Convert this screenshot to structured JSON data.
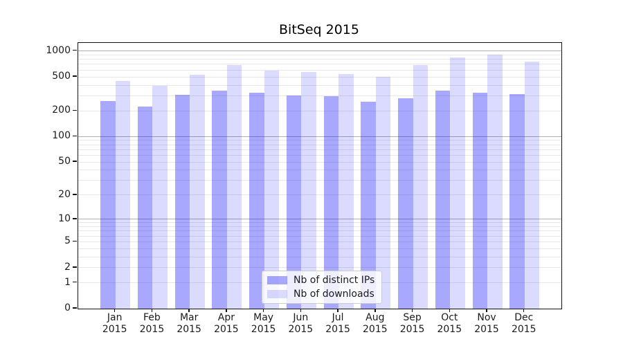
{
  "title": "BitSeq 2015",
  "chart_data": {
    "type": "bar",
    "title": "BitSeq 2015",
    "yscale": "log1p",
    "ylim": [
      0,
      1000
    ],
    "yticks": [
      0,
      1,
      2,
      5,
      10,
      20,
      50,
      100,
      200,
      500,
      1000
    ],
    "grid": true,
    "legend_position": "lower center",
    "year": "2015",
    "months": [
      "Jan",
      "Feb",
      "Mar",
      "Apr",
      "May",
      "Jun",
      "Jul",
      "Aug",
      "Sep",
      "Oct",
      "Nov",
      "Dec"
    ],
    "series": [
      {
        "name": "Nb of distinct IPs",
        "color": "#0000ff",
        "alpha": 0.34,
        "values": [
          260,
          224,
          306,
          347,
          324,
          304,
          299,
          256,
          280,
          348,
          327,
          314
        ]
      },
      {
        "name": "Nb of downloads",
        "color": "#0000ff",
        "alpha": 0.14,
        "values": [
          445,
          391,
          530,
          688,
          594,
          566,
          542,
          500,
          692,
          836,
          905,
          760
        ]
      }
    ],
    "colors": {
      "major_gridline": "#b0b0b0",
      "minor_gridline": "#e7e7e7",
      "axis": "#111111",
      "text": "#1a1a1a"
    }
  }
}
